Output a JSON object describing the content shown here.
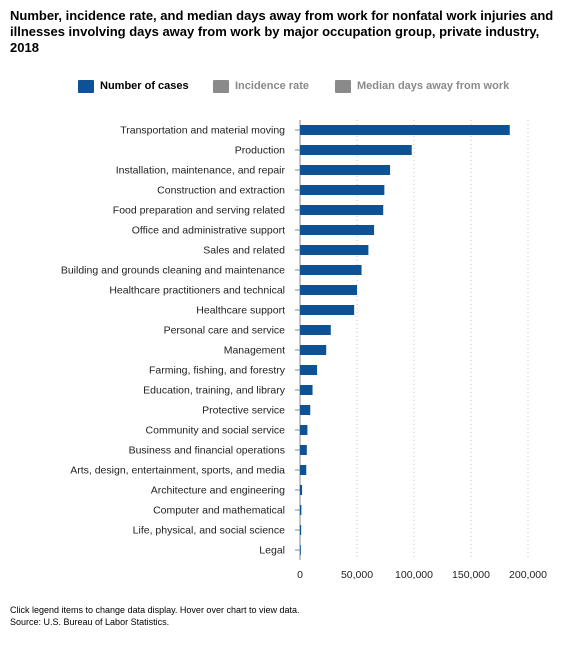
{
  "title": "Number, incidence rate, and median days away from work for nonfatal work injuries and illnesses involving days away from work by major occupation group, private industry, 2018",
  "legend": [
    {
      "label": "Number of cases",
      "color": "#0d5294",
      "active": true
    },
    {
      "label": "Incidence rate",
      "color": "#8a8a8a",
      "active": false
    },
    {
      "label": "Median days away from work",
      "color": "#8a8a8a",
      "active": false
    }
  ],
  "chart_data": {
    "type": "bar",
    "orientation": "horizontal",
    "categories": [
      "Transportation and material moving",
      "Production",
      "Installation, maintenance, and repair",
      "Construction and extraction",
      "Food preparation and serving related",
      "Office and administrative support",
      "Sales and related",
      "Building and grounds cleaning and maintenance",
      "Healthcare practitioners and technical",
      "Healthcare support",
      "Personal care and service",
      "Management",
      "Farming, fishing, and forestry",
      "Education, training, and library",
      "Protective service",
      "Community and social service",
      "Business and financial operations",
      "Arts, design, entertainment, sports, and media",
      "Architecture and engineering",
      "Computer and mathematical",
      "Life, physical, and social science",
      "Legal"
    ],
    "series": [
      {
        "name": "Number of cases",
        "values": [
          184000,
          98000,
          79000,
          74000,
          73000,
          65000,
          60000,
          54000,
          50000,
          47500,
          27000,
          23000,
          15000,
          11000,
          9000,
          6500,
          6000,
          5500,
          1800,
          1200,
          1000,
          500
        ]
      }
    ],
    "xlim": [
      0,
      200000
    ],
    "x_ticks": [
      0,
      50000,
      100000,
      150000,
      200000
    ],
    "x_tick_labels": [
      "0",
      "50,000",
      "100,000",
      "150,000",
      "200,000"
    ],
    "grid": true,
    "legend_position": "top",
    "bar_color": "#0d5294"
  },
  "footer": {
    "note": "Click legend items to change data display. Hover over chart to view data.",
    "source": "Source: U.S. Bureau of Labor Statistics."
  }
}
